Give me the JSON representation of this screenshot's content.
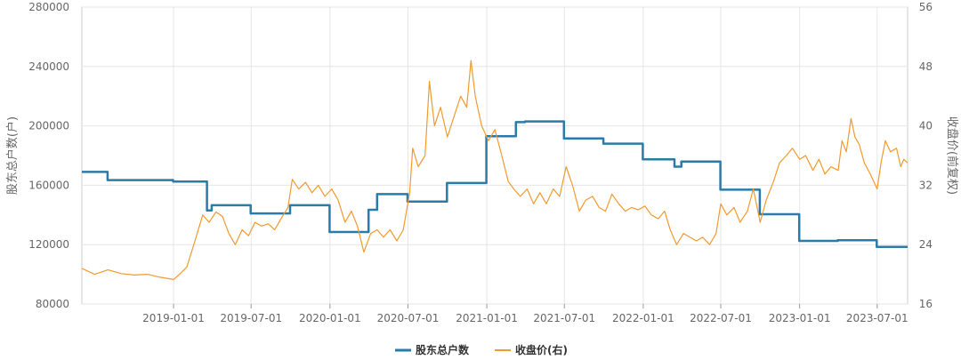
{
  "chart_data": {
    "type": "line",
    "title": "",
    "grid": true,
    "legend_position": "bottom-center",
    "x_axis": {
      "type": "date",
      "range": [
        "2018-06-01",
        "2023-09-10"
      ],
      "ticks": [
        "2019-01-01",
        "2019-07-01",
        "2020-01-01",
        "2020-07-01",
        "2021-01-01",
        "2021-07-01",
        "2022-01-01",
        "2022-07-01",
        "2023-01-01",
        "2023-07-01"
      ]
    },
    "y_left": {
      "label": "股东总户数(户)",
      "range": [
        80000,
        280000
      ],
      "ticks": [
        "80000",
        "120000",
        "160000",
        "200000",
        "240000",
        "280000"
      ]
    },
    "y_right": {
      "label": "收盘价(前复权)",
      "range": [
        16,
        56
      ],
      "ticks": [
        "16",
        "24",
        "32",
        "40",
        "48",
        "56"
      ]
    },
    "series": [
      {
        "name": "股东总户数",
        "axis": "left",
        "style": "step",
        "color": "#2a7ba8",
        "points": [
          [
            "2018-06-01",
            169000
          ],
          [
            "2018-07-31",
            163500
          ],
          [
            "2018-12-31",
            162500
          ],
          [
            "2019-03-20",
            143000
          ],
          [
            "2019-03-31",
            146500
          ],
          [
            "2019-06-30",
            141000
          ],
          [
            "2019-09-30",
            146500
          ],
          [
            "2019-12-31",
            128500
          ],
          [
            "2020-03-31",
            143500
          ],
          [
            "2020-04-20",
            154000
          ],
          [
            "2020-06-30",
            149000
          ],
          [
            "2020-09-30",
            161500
          ],
          [
            "2020-12-31",
            193000
          ],
          [
            "2021-03-10",
            202500
          ],
          [
            "2021-03-31",
            203000
          ],
          [
            "2021-06-30",
            191500
          ],
          [
            "2021-09-30",
            188000
          ],
          [
            "2021-12-31",
            177500
          ],
          [
            "2022-03-15",
            172500
          ],
          [
            "2022-03-31",
            176000
          ],
          [
            "2022-06-30",
            157000
          ],
          [
            "2022-09-30",
            140500
          ],
          [
            "2022-12-31",
            122500
          ],
          [
            "2023-03-31",
            123000
          ],
          [
            "2023-06-30",
            118500
          ],
          [
            "2023-09-10",
            118500
          ]
        ]
      },
      {
        "name": "收盘价(右)",
        "axis": "right",
        "style": "line",
        "color": "#f29a2e",
        "points": [
          [
            "2018-06-01",
            20.8
          ],
          [
            "2018-07-01",
            20.0
          ],
          [
            "2018-08-01",
            20.6
          ],
          [
            "2018-09-01",
            20.1
          ],
          [
            "2018-10-01",
            19.9
          ],
          [
            "2018-11-01",
            20.0
          ],
          [
            "2018-12-01",
            19.6
          ],
          [
            "2019-01-01",
            19.3
          ],
          [
            "2019-01-15",
            20.0
          ],
          [
            "2019-02-01",
            21.0
          ],
          [
            "2019-02-20",
            24.5
          ],
          [
            "2019-03-10",
            28.0
          ],
          [
            "2019-03-25",
            27.0
          ],
          [
            "2019-04-10",
            28.4
          ],
          [
            "2019-04-25",
            27.8
          ],
          [
            "2019-05-10",
            25.5
          ],
          [
            "2019-05-25",
            24.0
          ],
          [
            "2019-06-10",
            26.0
          ],
          [
            "2019-06-25",
            25.2
          ],
          [
            "2019-07-10",
            27.0
          ],
          [
            "2019-07-25",
            26.5
          ],
          [
            "2019-08-10",
            26.8
          ],
          [
            "2019-08-25",
            26.0
          ],
          [
            "2019-09-10",
            27.6
          ],
          [
            "2019-09-25",
            29.0
          ],
          [
            "2019-10-05",
            32.8
          ],
          [
            "2019-10-20",
            31.5
          ],
          [
            "2019-11-05",
            32.4
          ],
          [
            "2019-11-20",
            31.0
          ],
          [
            "2019-12-05",
            32.0
          ],
          [
            "2019-12-20",
            30.5
          ],
          [
            "2020-01-05",
            31.5
          ],
          [
            "2020-01-20",
            30.0
          ],
          [
            "2020-02-05",
            27.0
          ],
          [
            "2020-02-20",
            28.5
          ],
          [
            "2020-03-05",
            26.5
          ],
          [
            "2020-03-20",
            23.0
          ],
          [
            "2020-04-05",
            25.5
          ],
          [
            "2020-04-20",
            26.0
          ],
          [
            "2020-05-05",
            25.0
          ],
          [
            "2020-05-20",
            26.0
          ],
          [
            "2020-06-05",
            24.5
          ],
          [
            "2020-06-20",
            26.0
          ],
          [
            "2020-07-05",
            31.0
          ],
          [
            "2020-07-12",
            37.0
          ],
          [
            "2020-07-25",
            34.5
          ],
          [
            "2020-08-10",
            36.0
          ],
          [
            "2020-08-20",
            46.0
          ],
          [
            "2020-09-01",
            40.0
          ],
          [
            "2020-09-15",
            42.5
          ],
          [
            "2020-10-01",
            38.5
          ],
          [
            "2020-10-15",
            41.0
          ],
          [
            "2020-11-01",
            44.0
          ],
          [
            "2020-11-15",
            42.5
          ],
          [
            "2020-11-25",
            48.8
          ],
          [
            "2020-12-05",
            44.0
          ],
          [
            "2020-12-20",
            40.0
          ],
          [
            "2021-01-05",
            38.0
          ],
          [
            "2021-01-20",
            39.5
          ],
          [
            "2021-02-05",
            36.0
          ],
          [
            "2021-02-20",
            32.5
          ],
          [
            "2021-03-05",
            31.5
          ],
          [
            "2021-03-20",
            30.5
          ],
          [
            "2021-04-05",
            31.5
          ],
          [
            "2021-04-20",
            29.5
          ],
          [
            "2021-05-05",
            31.0
          ],
          [
            "2021-05-20",
            29.5
          ],
          [
            "2021-06-05",
            31.5
          ],
          [
            "2021-06-20",
            30.5
          ],
          [
            "2021-07-05",
            34.5
          ],
          [
            "2021-07-20",
            32.0
          ],
          [
            "2021-08-05",
            28.5
          ],
          [
            "2021-08-20",
            30.0
          ],
          [
            "2021-09-05",
            30.5
          ],
          [
            "2021-09-20",
            29.0
          ],
          [
            "2021-10-05",
            28.5
          ],
          [
            "2021-10-20",
            30.8
          ],
          [
            "2021-11-05",
            29.5
          ],
          [
            "2021-11-20",
            28.5
          ],
          [
            "2021-12-05",
            29.0
          ],
          [
            "2021-12-20",
            28.7
          ],
          [
            "2022-01-05",
            29.2
          ],
          [
            "2022-01-20",
            28.0
          ],
          [
            "2022-02-05",
            27.5
          ],
          [
            "2022-02-20",
            28.5
          ],
          [
            "2022-03-05",
            26.0
          ],
          [
            "2022-03-20",
            24.0
          ],
          [
            "2022-04-05",
            25.5
          ],
          [
            "2022-04-20",
            25.0
          ],
          [
            "2022-05-05",
            24.5
          ],
          [
            "2022-05-20",
            25.0
          ],
          [
            "2022-06-05",
            24.0
          ],
          [
            "2022-06-20",
            25.5
          ],
          [
            "2022-07-01",
            29.5
          ],
          [
            "2022-07-15",
            28.0
          ],
          [
            "2022-08-01",
            29.0
          ],
          [
            "2022-08-15",
            27.0
          ],
          [
            "2022-09-01",
            28.5
          ],
          [
            "2022-09-15",
            31.5
          ],
          [
            "2022-10-01",
            27.0
          ],
          [
            "2022-10-15",
            30.0
          ],
          [
            "2022-11-01",
            32.5
          ],
          [
            "2022-11-15",
            35.0
          ],
          [
            "2022-12-01",
            36.0
          ],
          [
            "2022-12-15",
            37.0
          ],
          [
            "2023-01-01",
            35.5
          ],
          [
            "2023-01-15",
            36.0
          ],
          [
            "2023-02-01",
            34.0
          ],
          [
            "2023-02-15",
            35.5
          ],
          [
            "2023-03-01",
            33.5
          ],
          [
            "2023-03-15",
            34.5
          ],
          [
            "2023-04-01",
            34.0
          ],
          [
            "2023-04-10",
            38.0
          ],
          [
            "2023-04-20",
            36.5
          ],
          [
            "2023-05-01",
            41.0
          ],
          [
            "2023-05-10",
            38.5
          ],
          [
            "2023-05-20",
            37.5
          ],
          [
            "2023-06-01",
            35.0
          ],
          [
            "2023-06-15",
            33.5
          ],
          [
            "2023-07-01",
            31.5
          ],
          [
            "2023-07-10",
            35.0
          ],
          [
            "2023-07-20",
            38.0
          ],
          [
            "2023-08-01",
            36.5
          ],
          [
            "2023-08-15",
            37.0
          ],
          [
            "2023-08-25",
            34.5
          ],
          [
            "2023-09-01",
            35.5
          ],
          [
            "2023-09-10",
            35.0
          ]
        ]
      }
    ]
  }
}
